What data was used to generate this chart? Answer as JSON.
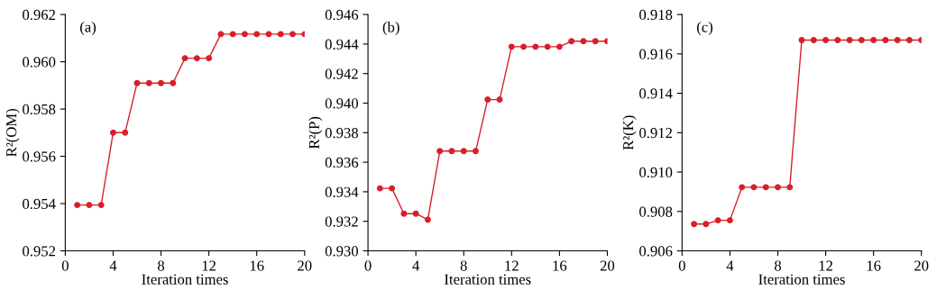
{
  "chart_data": [
    {
      "type": "line",
      "ylabel": "R²(OM)",
      "xlabel": "Iteration times",
      "annotations": [
        "(a)"
      ],
      "marker": "circle",
      "x": [
        1,
        2,
        3,
        4,
        5,
        6,
        7,
        8,
        9,
        10,
        11,
        12,
        13,
        14,
        15,
        16,
        17,
        18,
        19,
        20
      ],
      "series": [
        {
          "color": "#d7202a",
          "values": [
            0.95394,
            0.95394,
            0.95394,
            0.957,
            0.957,
            0.9591,
            0.9591,
            0.9591,
            0.9591,
            0.96015,
            0.96015,
            0.96015,
            0.96117,
            0.96117,
            0.96117,
            0.96117,
            0.96117,
            0.96117,
            0.96117,
            0.96117
          ]
        }
      ],
      "xlim": [
        0,
        20
      ],
      "xticks": [
        0,
        4,
        8,
        12,
        16,
        20
      ],
      "ylim": [
        0.952,
        0.962
      ],
      "yticks": [
        {
          "value": 0.952,
          "label": "0.952"
        },
        {
          "value": 0.954,
          "label": "0.954"
        },
        {
          "value": 0.956,
          "label": "0.956"
        },
        {
          "value": 0.958,
          "label": "0.958"
        },
        {
          "value": 0.96,
          "label": "0.960"
        },
        {
          "value": 0.962,
          "label": "0.962"
        }
      ]
    },
    {
      "type": "line",
      "ylabel": "R²(P)",
      "xlabel": "Iteration times",
      "annotations": [
        "(b)"
      ],
      "marker": "circle",
      "x": [
        1,
        2,
        3,
        4,
        5,
        6,
        7,
        8,
        9,
        10,
        11,
        12,
        13,
        14,
        15,
        16,
        17,
        18,
        19,
        20
      ],
      "series": [
        {
          "color": "#d7202a",
          "values": [
            0.93423,
            0.93423,
            0.93252,
            0.93252,
            0.93211,
            0.93675,
            0.93675,
            0.93675,
            0.93675,
            0.94024,
            0.94024,
            0.94382,
            0.94382,
            0.94382,
            0.94382,
            0.94382,
            0.94419,
            0.94419,
            0.94419,
            0.94419
          ]
        }
      ],
      "xlim": [
        0,
        20
      ],
      "xticks": [
        0,
        4,
        8,
        12,
        16,
        20
      ],
      "ylim": [
        0.93,
        0.946
      ],
      "yticks": [
        {
          "value": 0.93,
          "label": "0.930"
        },
        {
          "value": 0.932,
          "label": "0.932"
        },
        {
          "value": 0.934,
          "label": "0.934"
        },
        {
          "value": 0.936,
          "label": "0.936"
        },
        {
          "value": 0.938,
          "label": "0.938"
        },
        {
          "value": 0.94,
          "label": "0.940"
        },
        {
          "value": 0.942,
          "label": "0.942"
        },
        {
          "value": 0.944,
          "label": "0.944"
        },
        {
          "value": 0.946,
          "label": "0.946"
        }
      ]
    },
    {
      "type": "line",
      "ylabel": "R²(K)",
      "xlabel": "Iteration times",
      "annotations": [
        "(c)"
      ],
      "marker": "circle",
      "x": [
        1,
        2,
        3,
        4,
        5,
        6,
        7,
        8,
        9,
        10,
        11,
        12,
        13,
        14,
        15,
        16,
        17,
        18,
        19,
        20
      ],
      "series": [
        {
          "color": "#d7202a",
          "values": [
            0.90736,
            0.90736,
            0.90755,
            0.90755,
            0.90923,
            0.90923,
            0.90923,
            0.90923,
            0.90923,
            0.9167,
            0.9167,
            0.9167,
            0.9167,
            0.9167,
            0.9167,
            0.9167,
            0.9167,
            0.9167,
            0.9167,
            0.9167
          ]
        }
      ],
      "xlim": [
        0,
        20
      ],
      "xticks": [
        0,
        4,
        8,
        12,
        16,
        20
      ],
      "ylim": [
        0.906,
        0.918
      ],
      "yticks": [
        {
          "value": 0.906,
          "label": "0.906"
        },
        {
          "value": 0.908,
          "label": "0.908"
        },
        {
          "value": 0.91,
          "label": "0.910"
        },
        {
          "value": 0.912,
          "label": "0.912"
        },
        {
          "value": 0.914,
          "label": "0.914"
        },
        {
          "value": 0.916,
          "label": "0.916"
        },
        {
          "value": 0.918,
          "label": "0.918"
        }
      ]
    }
  ]
}
